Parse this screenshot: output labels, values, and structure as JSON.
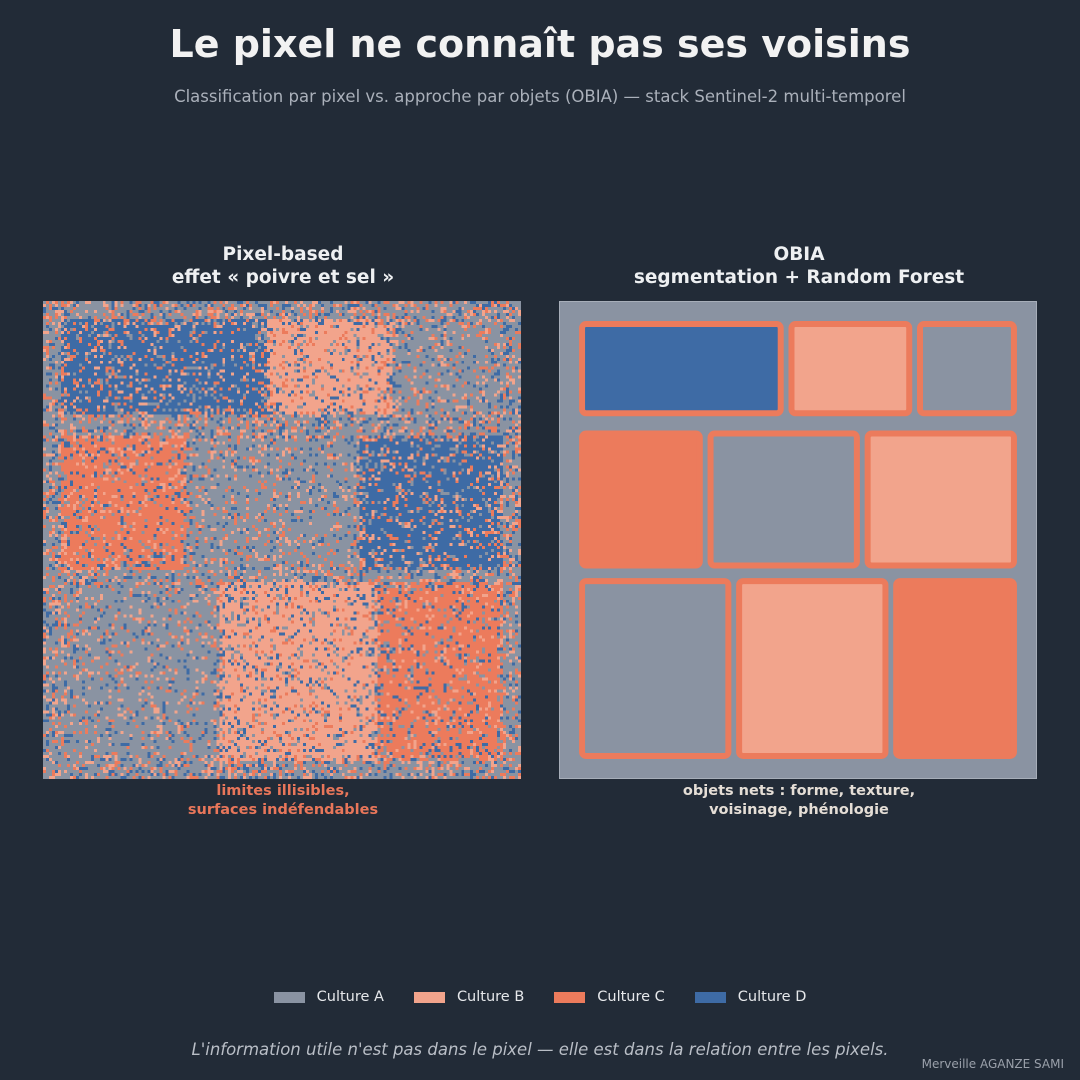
{
  "header": {
    "title": "Le pixel ne connaît pas ses voisins",
    "subtitle": "Classification par pixel vs. approche par objets (OBIA) — stack Sentinel-2 multi-temporel"
  },
  "colors": {
    "background": "#222b37",
    "culture_a": "#8a93a2",
    "culture_b": "#f2a48c",
    "culture_c": "#ec7b5c",
    "culture_d": "#3e6ba5",
    "caption_left": "#e8765a",
    "caption_right": "#e5ded6"
  },
  "legend": [
    {
      "label": "Culture A",
      "color": "#8a93a2"
    },
    {
      "label": "Culture B",
      "color": "#f2a48c"
    },
    {
      "label": "Culture C",
      "color": "#ec7b5c"
    },
    {
      "label": "Culture D",
      "color": "#3e6ba5"
    }
  ],
  "footer": {
    "quote": "L'information utile n'est pas dans le pixel — elle est dans la relation entre les pixels.",
    "signature": "Merveille AGANZE SAMI"
  },
  "chart_data": [
    {
      "type": "heatmap",
      "title_line1": "Pixel-based",
      "title_line2": "effet « poivre et sel »",
      "caption_line1": "limites illisibles,",
      "caption_line2": "surfaces indéfendables",
      "grid_size": 160,
      "classes": [
        "Culture A",
        "Culture B",
        "Culture C",
        "Culture D"
      ],
      "parcels": [
        {
          "row": 1,
          "x0": 0.04,
          "x1": 0.47,
          "y0": 0.04,
          "y1": 0.24,
          "class": "Culture D"
        },
        {
          "row": 1,
          "x0": 0.47,
          "x1": 0.73,
          "y0": 0.04,
          "y1": 0.24,
          "class": "Culture B"
        },
        {
          "row": 1,
          "x0": 0.73,
          "x1": 0.96,
          "y0": 0.04,
          "y1": 0.24,
          "class": "Culture A"
        },
        {
          "row": 2,
          "x0": 0.04,
          "x1": 0.3,
          "y0": 0.28,
          "y1": 0.56,
          "class": "Culture C"
        },
        {
          "row": 2,
          "x0": 0.3,
          "x1": 0.66,
          "y0": 0.28,
          "y1": 0.56,
          "class": "Culture A"
        },
        {
          "row": 2,
          "x0": 0.66,
          "x1": 0.96,
          "y0": 0.28,
          "y1": 0.56,
          "class": "Culture D"
        },
        {
          "row": 3,
          "x0": 0.04,
          "x1": 0.37,
          "y0": 0.59,
          "y1": 0.96,
          "class": "Culture A"
        },
        {
          "row": 3,
          "x0": 0.37,
          "x1": 0.7,
          "y0": 0.59,
          "y1": 0.96,
          "class": "Culture B"
        },
        {
          "row": 3,
          "x0": 0.7,
          "x1": 0.96,
          "y0": 0.59,
          "y1": 0.96,
          "class": "Culture C"
        }
      ]
    },
    {
      "type": "heatmap",
      "title_line1": "OBIA",
      "title_line2": "segmentation + Random Forest",
      "caption_line1": "objets nets : forme, texture,",
      "caption_line2": "voisinage, phénologie",
      "segment_outline_color": "#ec7b5c",
      "segments": [
        {
          "row": 1,
          "x0": 0.04,
          "x1": 0.47,
          "y0": 0.04,
          "y1": 0.24,
          "class": "Culture D"
        },
        {
          "row": 1,
          "x0": 0.48,
          "x1": 0.74,
          "y0": 0.04,
          "y1": 0.24,
          "class": "Culture B"
        },
        {
          "row": 1,
          "x0": 0.75,
          "x1": 0.96,
          "y0": 0.04,
          "y1": 0.24,
          "class": "Culture A"
        },
        {
          "row": 2,
          "x0": 0.04,
          "x1": 0.3,
          "y0": 0.27,
          "y1": 0.56,
          "class": "Culture C"
        },
        {
          "row": 2,
          "x0": 0.31,
          "x1": 0.63,
          "y0": 0.27,
          "y1": 0.56,
          "class": "Culture A"
        },
        {
          "row": 2,
          "x0": 0.64,
          "x1": 0.96,
          "y0": 0.27,
          "y1": 0.56,
          "class": "Culture B"
        },
        {
          "row": 3,
          "x0": 0.04,
          "x1": 0.36,
          "y0": 0.58,
          "y1": 0.96,
          "class": "Culture A"
        },
        {
          "row": 3,
          "x0": 0.37,
          "x1": 0.69,
          "y0": 0.58,
          "y1": 0.96,
          "class": "Culture B"
        },
        {
          "row": 3,
          "x0": 0.7,
          "x1": 0.96,
          "y0": 0.58,
          "y1": 0.96,
          "class": "Culture C"
        }
      ]
    }
  ]
}
